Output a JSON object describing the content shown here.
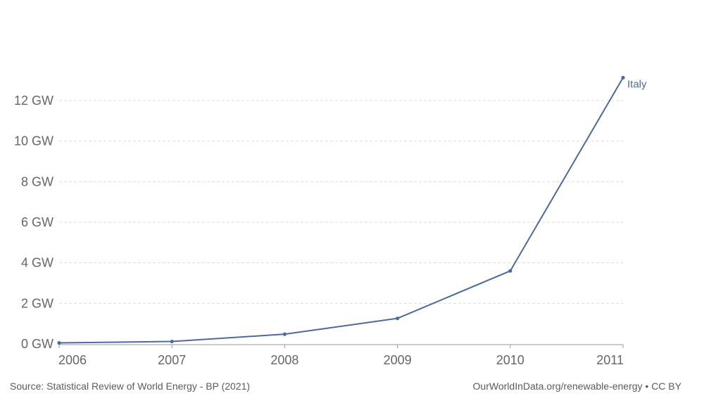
{
  "chart_data": {
    "type": "line",
    "x": [
      2006,
      2007,
      2008,
      2009,
      2010,
      2011
    ],
    "series": [
      {
        "name": "Italy",
        "values": [
          0.05,
          0.12,
          0.48,
          1.26,
          3.6,
          13.13
        ],
        "color": "#4c6a9c"
      }
    ],
    "ylim": [
      0,
      12
    ],
    "yticks": [
      0,
      2,
      4,
      6,
      8,
      10,
      12
    ],
    "ytick_labels": [
      "0 GW",
      "2 GW",
      "4 GW",
      "6 GW",
      "8 GW",
      "10 GW",
      "12 GW"
    ],
    "xticks": [
      2006,
      2007,
      2008,
      2009,
      2010,
      2011
    ],
    "xtick_labels": [
      "2006",
      "2007",
      "2008",
      "2009",
      "2010",
      "2011"
    ],
    "grid": true
  },
  "footer": {
    "source": "Source: Statistical Review of World Energy - BP (2021)",
    "credit": "OurWorldInData.org/renewable-energy • CC BY"
  }
}
